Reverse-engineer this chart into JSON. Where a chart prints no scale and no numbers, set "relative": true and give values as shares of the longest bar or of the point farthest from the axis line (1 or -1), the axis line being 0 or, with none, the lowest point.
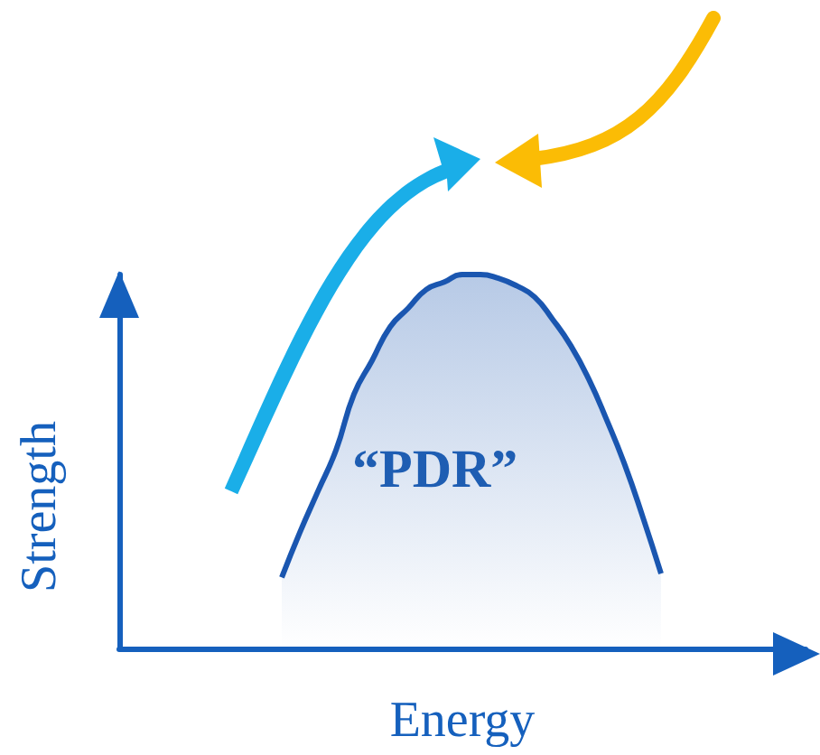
{
  "chart_data": {
    "type": "area",
    "relative": true,
    "xlabel": "Energy",
    "ylabel": "Strength",
    "annotations": [
      "“PDR”"
    ],
    "grid": false,
    "marker": "none",
    "categories": [
      null,
      null,
      null,
      null,
      null,
      null,
      null,
      null,
      null,
      null,
      null,
      null,
      null,
      null,
      null,
      null,
      null,
      null,
      null,
      null,
      null,
      null,
      null,
      null,
      null,
      null,
      null,
      null,
      null,
      null,
      null,
      null,
      null,
      null,
      null,
      null,
      null,
      null,
      null
    ],
    "series": [
      {
        "color": "#1a56b0",
        "values": [
          null,
          null,
          null,
          null,
          null,
          null,
          null,
          null,
          null,
          0.19,
          0.31,
          0.42,
          0.53,
          0.68,
          0.77,
          0.86,
          0.91,
          0.96,
          0.98,
          1.0,
          1.0,
          0.99,
          0.97,
          0.94,
          0.88,
          0.81,
          0.72,
          0.61,
          0.49,
          0.35,
          0.2,
          null,
          null,
          null,
          null,
          null,
          null,
          null,
          null
        ]
      }
    ]
  }
}
